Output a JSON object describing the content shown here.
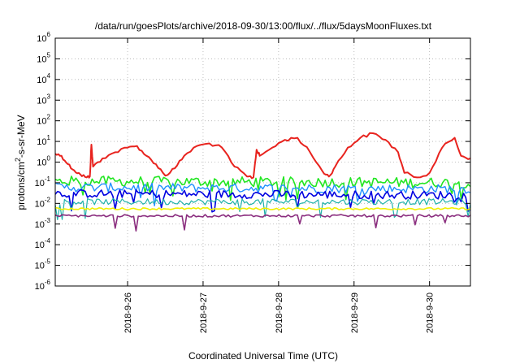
{
  "chart_data": {
    "type": "line",
    "title": "/data/run/goesPlots/archive/2018-09-30/13:00/flux/../flux/5daysMoonFluxes.txt",
    "xlabel": "Coordinated Universal Time (UTC)",
    "ylabel": {
      "pre": "protons/cm",
      "sup": "2",
      "post": "-s-sr-MeV"
    },
    "yscale": "log",
    "ylim": [
      1e-06,
      1000000.0
    ],
    "xlim": [
      "2018-09-25T01:00",
      "2018-09-30T13:00"
    ],
    "x_ticks": [
      "2018-9-26",
      "2018-9-27",
      "2018-9-28",
      "2018-9-29",
      "2018-9-30"
    ],
    "y_ticks": [
      {
        "base": "10",
        "exp": "6"
      },
      {
        "base": "10",
        "exp": "5"
      },
      {
        "base": "10",
        "exp": "4"
      },
      {
        "base": "10",
        "exp": "3"
      },
      {
        "base": "10",
        "exp": "2"
      },
      {
        "base": "10",
        "exp": "1"
      },
      {
        "base": "10",
        "exp": "0"
      },
      {
        "base": "10",
        "exp": "-1"
      },
      {
        "base": "10",
        "exp": "-2"
      },
      {
        "base": "10",
        "exp": "-3"
      },
      {
        "base": "10",
        "exp": "-4"
      },
      {
        "base": "10",
        "exp": "-5"
      },
      {
        "base": "10",
        "exp": "-6"
      }
    ],
    "grid": true,
    "legend": "none",
    "series": [
      {
        "color": "#e8231e",
        "width": 2.0,
        "x": [
          "2018-09-25T01:00",
          "2018-09-25T03:00",
          "2018-09-25T05:00",
          "2018-09-25T07:00",
          "2018-09-25T09:00",
          "2018-09-25T11:00",
          "2018-09-25T12:00",
          "2018-09-25T12:30",
          "2018-09-25T13:00",
          "2018-09-25T16:00",
          "2018-09-25T20:00",
          "2018-09-26T00:00",
          "2018-09-26T03:00",
          "2018-09-26T06:00",
          "2018-09-26T09:00",
          "2018-09-26T12:00",
          "2018-09-26T15:00",
          "2018-09-26T18:00",
          "2018-09-26T22:00",
          "2018-09-27T02:00",
          "2018-09-27T06:00",
          "2018-09-27T10:00",
          "2018-09-27T14:00",
          "2018-09-27T16:00",
          "2018-09-27T17:00",
          "2018-09-27T18:00",
          "2018-09-27T22:00",
          "2018-09-28T02:00",
          "2018-09-28T06:00",
          "2018-09-28T10:00",
          "2018-09-28T14:00",
          "2018-09-28T16:00",
          "2018-09-28T18:00",
          "2018-09-28T22:00",
          "2018-09-29T02:00",
          "2018-09-29T06:00",
          "2018-09-29T10:00",
          "2018-09-29T14:00",
          "2018-09-29T16:00",
          "2018-09-29T20:00",
          "2018-09-30T00:00",
          "2018-09-30T04:00",
          "2018-09-30T08:00",
          "2018-09-30T10:00",
          "2018-09-30T13:00"
        ],
        "y": [
          2.5,
          2.0,
          0.8,
          0.4,
          0.25,
          0.18,
          0.2,
          7,
          0.6,
          1.5,
          3,
          5,
          6,
          2,
          0.8,
          0.22,
          0.5,
          2,
          6,
          8,
          5,
          0.6,
          0.2,
          0.18,
          4,
          2,
          5,
          12,
          15,
          3,
          0.35,
          0.2,
          0.6,
          5,
          15,
          25,
          12,
          3,
          0.3,
          0.18,
          0.3,
          5,
          15,
          2,
          1.5
        ]
      },
      {
        "color": "#22e622",
        "width": 1.6,
        "x": [
          "2018-09-25T01:00",
          "2018-09-30T13:00"
        ],
        "y": [
          0.12,
          0.1
        ],
        "jitter": 0.25,
        "dips": 0.06
      },
      {
        "color": "#1e90ff",
        "width": 1.4,
        "x": [
          "2018-09-25T01:00",
          "2018-09-30T13:00"
        ],
        "y": [
          0.06,
          0.05
        ],
        "jitter": 0.22,
        "dips": 0.05
      },
      {
        "color": "#0000e0",
        "width": 1.6,
        "x": [
          "2018-09-25T01:00",
          "2018-09-30T13:00"
        ],
        "y": [
          0.03,
          0.025
        ],
        "jitter": 0.2,
        "dips": 0.06
      },
      {
        "color": "#20b2aa",
        "width": 1.2,
        "x": [
          "2018-09-25T01:00",
          "2018-09-30T13:00"
        ],
        "y": [
          0.012,
          0.012
        ],
        "jitter": 0.15,
        "dips": 0.08
      },
      {
        "color": "#f0f000",
        "width": 1.6,
        "x": [
          "2018-09-25T01:00",
          "2018-09-30T13:00"
        ],
        "y": [
          0.0055,
          0.0055
        ],
        "jitter": 0.05,
        "dips": 0.0
      },
      {
        "color": "#8b2e7f",
        "width": 1.6,
        "x": [
          "2018-09-25T01:00",
          "2018-09-30T13:00"
        ],
        "y": [
          0.0025,
          0.0025
        ],
        "jitter": 0.06,
        "dips": 0.04
      }
    ]
  }
}
